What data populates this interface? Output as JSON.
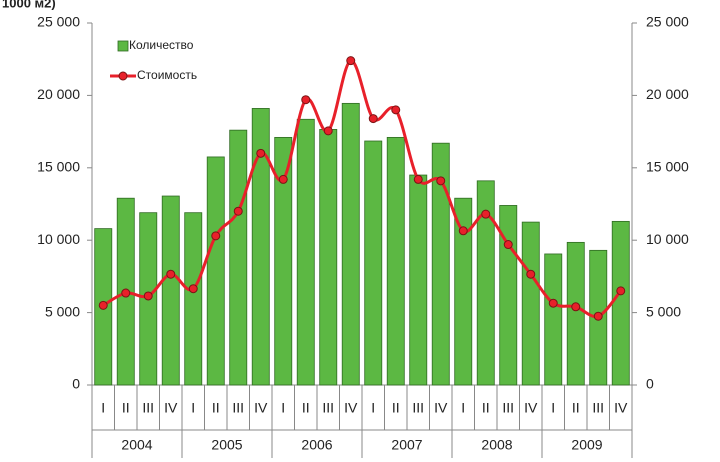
{
  "chart_data": {
    "type": "bar-line",
    "title": "1000 м2)",
    "categories": [
      "I",
      "II",
      "III",
      "IV",
      "I",
      "II",
      "III",
      "IV",
      "I",
      "II",
      "III",
      "IV",
      "I",
      "II",
      "III",
      "IV",
      "I",
      "II",
      "III",
      "IV",
      "I",
      "II",
      "III",
      "IV"
    ],
    "year_groups": [
      "2004",
      "2005",
      "2006",
      "2007",
      "2008",
      "2009"
    ],
    "series": [
      {
        "name": "Количество",
        "type": "bar",
        "color": "#5cb843",
        "values": [
          10800,
          12900,
          11900,
          13050,
          11900,
          15750,
          17600,
          19100,
          17100,
          18350,
          17650,
          19450,
          16850,
          17100,
          14500,
          16700,
          12900,
          14100,
          12400,
          11250,
          9050,
          9850,
          9300,
          11300
        ]
      },
      {
        "name": "Стоимость",
        "type": "line",
        "axis": "y2",
        "color": "#e8202a",
        "values": [
          5500,
          6350,
          6150,
          7650,
          6650,
          10300,
          12000,
          16000,
          14200,
          19700,
          17550,
          22400,
          18400,
          19000,
          14200,
          14100,
          10650,
          11800,
          9700,
          7650,
          5650,
          5400,
          4750,
          6500
        ]
      }
    ],
    "ylim": [
      0,
      25000
    ],
    "yticks": [
      0,
      {
        "value": 5000,
        "label": "5 000"
      },
      {
        "value": 10000,
        "label": "10 000"
      },
      {
        "value": 15000,
        "label": "15 000"
      },
      {
        "value": 20000,
        "label": "20 000"
      },
      {
        "value": 25000,
        "label": "25 000"
      }
    ],
    "y2lim": [
      0,
      25000
    ],
    "y2ticks": [
      0,
      {
        "value": 5000,
        "label": "5 000"
      },
      {
        "value": 10000,
        "label": "10 000"
      },
      {
        "value": 15000,
        "label": "15 000"
      },
      {
        "value": 20000,
        "label": "20 000"
      },
      {
        "value": 25000,
        "label": "25 000"
      }
    ],
    "grid": false,
    "legend": "top-left"
  }
}
